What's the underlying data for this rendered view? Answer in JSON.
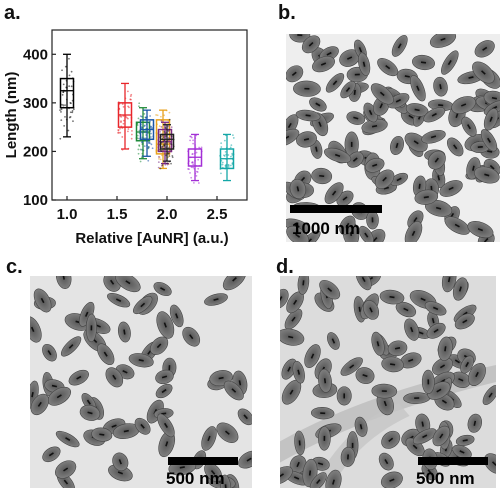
{
  "panels": {
    "a": {
      "label": "a."
    },
    "b": {
      "label": "b.",
      "scale_bar": "1000 nm"
    },
    "c": {
      "label": "c.",
      "scale_bar": "500 nm"
    },
    "d": {
      "label": "d.",
      "scale_bar": "500 nm"
    }
  },
  "chart_data": {
    "type": "box",
    "xlabel": "Relative [AuNR]  (a.u.)",
    "ylabel": "Length (nm)",
    "xlim": [
      0.85,
      2.8
    ],
    "ylim": [
      100,
      450
    ],
    "xticks": [
      1.0,
      1.5,
      2.0,
      2.5
    ],
    "yticks": [
      100,
      200,
      300,
      400
    ],
    "grid": false,
    "series": [
      {
        "x": 1.0,
        "color": "#000000",
        "min": 230,
        "q1": 290,
        "median": 325,
        "q3": 350,
        "max": 400
      },
      {
        "x": 1.58,
        "color": "#e8262b",
        "min": 205,
        "q1": 250,
        "median": 275,
        "q3": 300,
        "max": 340
      },
      {
        "x": 1.76,
        "color": "#1f8a3a",
        "min": 185,
        "q1": 222,
        "median": 240,
        "q3": 260,
        "max": 290
      },
      {
        "x": 1.8,
        "color": "#1a56a6",
        "min": 190,
        "q1": 225,
        "median": 245,
        "q3": 265,
        "max": 285
      },
      {
        "x": 1.96,
        "color": "#e8a21c",
        "min": 165,
        "q1": 195,
        "median": 215,
        "q3": 265,
        "max": 285
      },
      {
        "x": 1.98,
        "color": "#7a2a82",
        "min": 175,
        "q1": 200,
        "median": 220,
        "q3": 245,
        "max": 260
      },
      {
        "x": 2.0,
        "color": "#222222",
        "min": 180,
        "q1": 205,
        "median": 225,
        "q3": 235,
        "max": 255
      },
      {
        "x": 2.28,
        "color": "#a32fd6",
        "min": 140,
        "q1": 170,
        "median": 188,
        "q3": 205,
        "max": 235
      },
      {
        "x": 2.6,
        "color": "#14a7a7",
        "min": 140,
        "q1": 165,
        "median": 185,
        "q3": 205,
        "max": 235
      }
    ]
  }
}
